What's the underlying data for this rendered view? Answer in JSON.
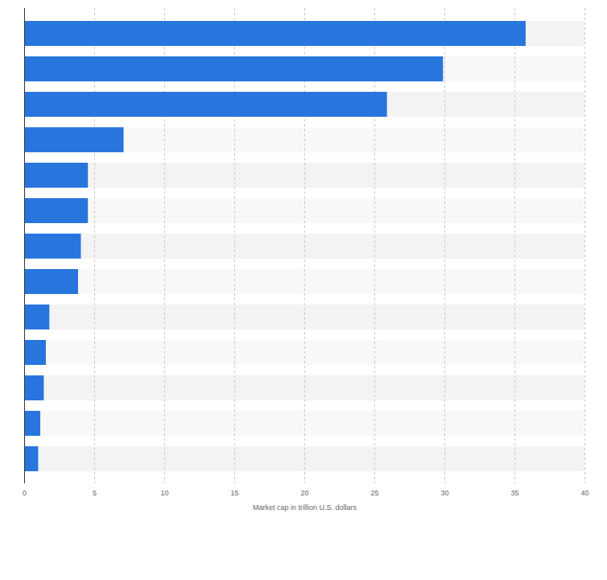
{
  "chart_data": {
    "type": "bar",
    "orientation": "horizontal",
    "categories": [
      null,
      null,
      null,
      null,
      null,
      null,
      null,
      null,
      null,
      null,
      null,
      null,
      null
    ],
    "values": [
      35.8,
      29.9,
      25.9,
      7.1,
      4.55,
      4.55,
      4.05,
      3.85,
      1.8,
      1.55,
      1.4,
      1.15,
      1.0
    ],
    "color": "#2876dd",
    "xlabel": "Market cap in trillion U.S. dollars",
    "xlim": [
      0,
      40
    ],
    "xticks": [
      0,
      5,
      10,
      15,
      20,
      25,
      30,
      35,
      40
    ],
    "grid": true,
    "tick_labels": "x"
  }
}
